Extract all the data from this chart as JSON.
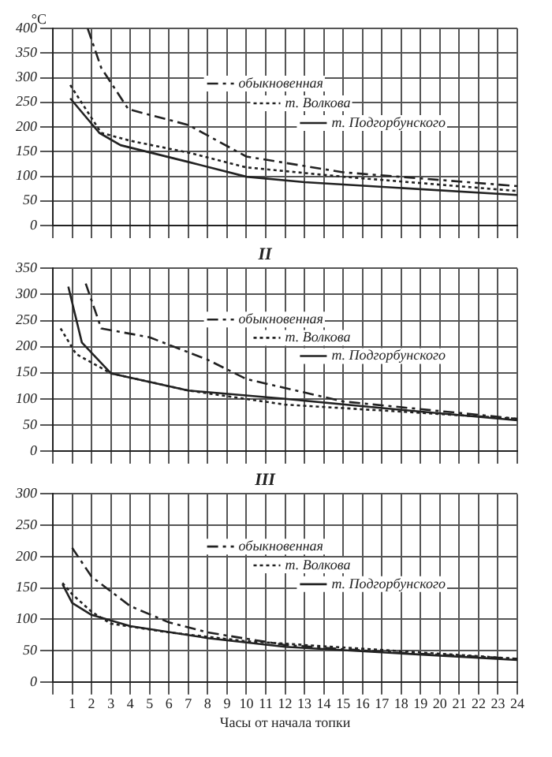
{
  "chart_data": [
    {
      "type": "line",
      "ylabel": "°C",
      "xlim": [
        0,
        24
      ],
      "xticks": [
        0,
        1,
        2,
        3,
        4,
        5,
        6,
        7,
        8,
        9,
        10,
        11,
        12,
        13,
        14,
        15,
        16,
        17,
        18,
        19,
        20,
        21,
        22,
        23,
        24
      ],
      "ylim": [
        0,
        400
      ],
      "yticks": [
        0,
        50,
        100,
        150,
        200,
        250,
        300,
        350,
        400
      ],
      "grid": true,
      "legend": "top right",
      "tick_labels": "y",
      "marker": "none",
      "series": [
        {
          "name": "обыкновенная",
          "color": "#222222",
          "line_style": "dashed",
          "x": [
            1.8,
            2.5,
            3.9,
            7,
            10,
            15,
            24
          ],
          "values": [
            400,
            320,
            236,
            204,
            140,
            108,
            80
          ]
        },
        {
          "name": "т. Волкова",
          "color": "#222222",
          "line_style": "dotted",
          "x": [
            0.9,
            2.5,
            4,
            7,
            10,
            15,
            24
          ],
          "values": [
            285,
            188,
            172,
            148,
            118,
            99,
            70
          ]
        },
        {
          "name": "т. Подгорбунского",
          "color": "#222222",
          "line_style": "solid",
          "x": [
            0.9,
            2.4,
            3.5,
            7,
            10,
            13,
            24
          ],
          "values": [
            258,
            188,
            163,
            129,
            99,
            88,
            62
          ]
        }
      ]
    },
    {
      "type": "line",
      "title": "II",
      "xlim": [
        0,
        24
      ],
      "xticks": [
        0,
        1,
        2,
        3,
        4,
        5,
        6,
        7,
        8,
        9,
        10,
        11,
        12,
        13,
        14,
        15,
        16,
        17,
        18,
        19,
        20,
        21,
        22,
        23,
        24
      ],
      "ylim": [
        0,
        350
      ],
      "yticks": [
        0,
        50,
        100,
        150,
        200,
        250,
        300,
        350
      ],
      "grid": true,
      "legend": "top right",
      "tick_labels": "y",
      "marker": "none",
      "series": [
        {
          "name": "обыкновенная",
          "color": "#222222",
          "line_style": "dashed",
          "x": [
            1.7,
            2.5,
            5,
            8,
            10,
            15,
            24
          ],
          "values": [
            321,
            235,
            218,
            175,
            138,
            95,
            62
          ]
        },
        {
          "name": "т. Волкова",
          "color": "#222222",
          "line_style": "dotted",
          "x": [
            0.4,
            1.2,
            3,
            7,
            12,
            24
          ],
          "values": [
            235,
            186,
            149,
            116,
            89,
            62
          ]
        },
        {
          "name": "т. Подгорбунского",
          "color": "#222222",
          "line_style": "solid",
          "x": [
            0.8,
            1.5,
            3,
            7,
            12,
            18,
            24
          ],
          "values": [
            315,
            208,
            149,
            116,
            100,
            79,
            59
          ]
        }
      ]
    },
    {
      "type": "line",
      "title": "III",
      "xlabel": "Часы от начала топки",
      "xlim": [
        0,
        24
      ],
      "xticks": [
        {
          "value": 0,
          "label": null
        },
        1,
        2,
        3,
        4,
        5,
        6,
        7,
        8,
        9,
        10,
        11,
        12,
        13,
        14,
        15,
        16,
        17,
        18,
        19,
        20,
        21,
        22,
        23,
        24
      ],
      "ylim": [
        0,
        300
      ],
      "yticks": [
        0,
        50,
        100,
        150,
        200,
        250,
        300
      ],
      "grid": true,
      "legend": "top right",
      "marker": "none",
      "series": [
        {
          "name": "обыкновенная",
          "color": "#222222",
          "line_style": "dashed",
          "x": [
            1,
            2,
            4,
            6,
            8,
            12,
            17,
            24
          ],
          "values": [
            214,
            168,
            121,
            95,
            79,
            59,
            48,
            37
          ]
        },
        {
          "name": "т. Волкова",
          "color": "#222222",
          "line_style": "dotted",
          "x": [
            0.5,
            1,
            2,
            3,
            6,
            10,
            24
          ],
          "values": [
            158,
            140,
            112,
            93,
            79,
            65,
            37
          ]
        },
        {
          "name": "т. Подгорбунского",
          "color": "#222222",
          "line_style": "solid",
          "x": [
            0.5,
            1,
            2,
            4,
            8,
            12,
            24
          ],
          "values": [
            156,
            126,
            107,
            89,
            70,
            56,
            35
          ]
        }
      ]
    }
  ]
}
